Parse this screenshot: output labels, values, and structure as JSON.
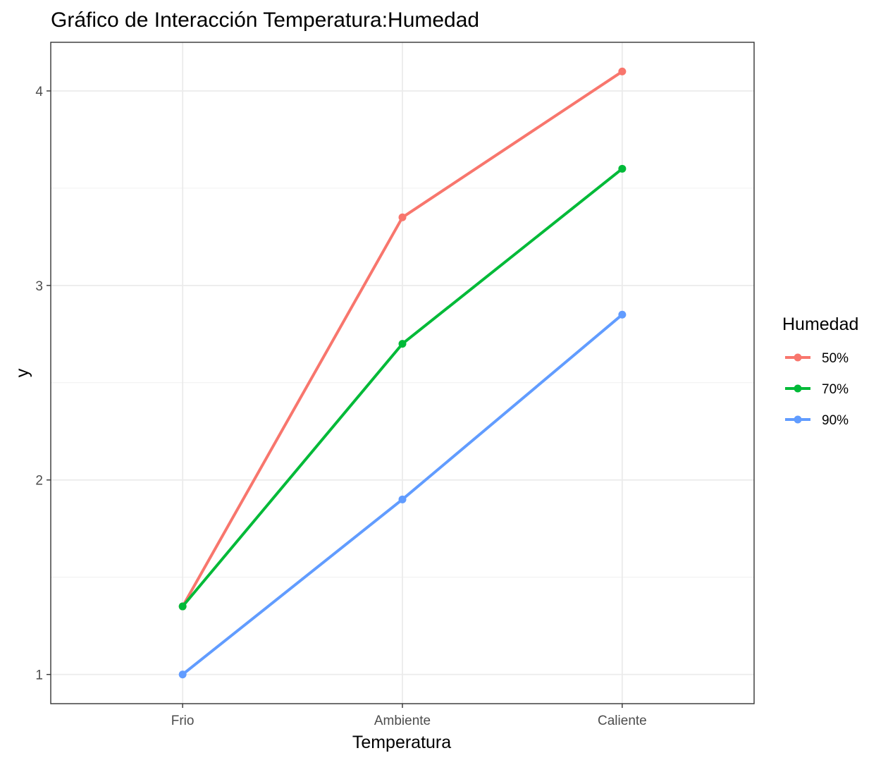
{
  "chart_data": {
    "type": "line",
    "title": "Gráfico de Interacción Temperatura:Humedad",
    "xlabel": "Temperatura",
    "ylabel": "y",
    "categories": [
      "Frio",
      "Ambiente",
      "Caliente"
    ],
    "ylim": [
      0.85,
      4.25
    ],
    "yticks": [
      1,
      2,
      3,
      4
    ],
    "yticks_minor": [
      1.5,
      2.5,
      3.5
    ],
    "grid": true,
    "legend": {
      "title": "Humedad",
      "placement": "right"
    },
    "series": [
      {
        "name": "50%",
        "color": "#F8766D",
        "values": [
          1.35,
          3.35,
          4.1
        ]
      },
      {
        "name": "70%",
        "color": "#00BA38",
        "values": [
          1.35,
          2.7,
          3.6
        ]
      },
      {
        "name": "90%",
        "color": "#619CFF",
        "values": [
          1.0,
          1.9,
          2.85
        ]
      }
    ]
  }
}
